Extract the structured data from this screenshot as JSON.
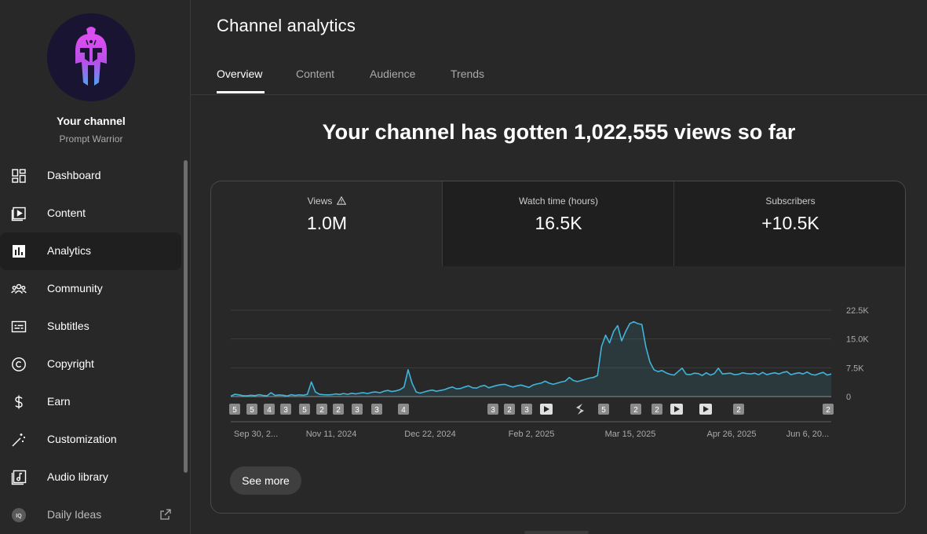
{
  "sidebar": {
    "channel_name": "Your channel",
    "channel_handle": "Prompt Warrior",
    "items": [
      {
        "label": "Dashboard",
        "icon": "dashboard-icon"
      },
      {
        "label": "Content",
        "icon": "content-icon"
      },
      {
        "label": "Analytics",
        "icon": "analytics-icon",
        "active": true
      },
      {
        "label": "Community",
        "icon": "community-icon"
      },
      {
        "label": "Subtitles",
        "icon": "subtitles-icon"
      },
      {
        "label": "Copyright",
        "icon": "copyright-icon"
      },
      {
        "label": "Earn",
        "icon": "earn-icon"
      },
      {
        "label": "Customization",
        "icon": "customization-icon"
      },
      {
        "label": "Audio library",
        "icon": "audio-library-icon"
      },
      {
        "label": "Daily Ideas",
        "icon": "daily-ideas-icon",
        "external": true
      }
    ]
  },
  "header": {
    "title": "Channel analytics"
  },
  "tabs": [
    {
      "label": "Overview",
      "active": true
    },
    {
      "label": "Content"
    },
    {
      "label": "Audience"
    },
    {
      "label": "Trends"
    }
  ],
  "headline": "Your channel has gotten 1,022,555 views so far",
  "metrics": [
    {
      "label": "Views",
      "value": "1.0M",
      "active": true,
      "warning": true
    },
    {
      "label": "Watch time (hours)",
      "value": "16.5K"
    },
    {
      "label": "Subscribers",
      "value": "+10.5K"
    }
  ],
  "see_more_label": "See more",
  "colors": {
    "accent": "#41b4d9",
    "background": "#282828",
    "card_tab_bg": "#1f1f1f"
  },
  "chart_data": {
    "type": "line",
    "series": [
      {
        "x_range": [
          "Sep 30, 2024",
          "Jun 15, 2025"
        ],
        "values": [
          100,
          600,
          450,
          250,
          180,
          350,
          250,
          500,
          300,
          200,
          1000,
          300,
          420,
          350,
          150,
          500,
          300,
          450,
          350,
          600,
          3800,
          1200,
          600,
          500,
          450,
          500,
          700,
          550,
          800,
          600,
          850,
          700,
          900,
          1000,
          800,
          1100,
          1200,
          1000,
          1400,
          1600,
          1300,
          1500,
          1800,
          2500,
          7000,
          3500,
          1200,
          900,
          1200,
          1500,
          1700,
          1400,
          1600,
          1800,
          2200,
          2500,
          2000,
          2100,
          2500,
          2800,
          2300,
          2200,
          2700,
          2900,
          2300,
          2600,
          2900,
          3100,
          3200,
          2800,
          2500,
          2800,
          3000,
          2700,
          2400,
          3000,
          3300,
          3500,
          4000,
          3500,
          3200,
          3500,
          3800,
          4000,
          5000,
          4200,
          3900,
          4200,
          4500,
          4800,
          5000,
          5500,
          13000,
          16000,
          14000,
          17000,
          18500,
          14500,
          17000,
          19000,
          19500,
          19000,
          18800,
          13000,
          9000,
          7000,
          6500,
          6800,
          6200,
          5800,
          5600,
          6500,
          7400,
          5800,
          5700,
          6100,
          6000,
          5500,
          6200,
          5600,
          6000,
          7400,
          5900,
          6000,
          6100,
          5700,
          5800,
          6200,
          6000,
          5900,
          6100,
          5700,
          6300,
          5700,
          6000,
          6200,
          5900,
          6300,
          6500,
          5700,
          6000,
          6200,
          5900,
          6400,
          5800,
          5600,
          6000,
          6300,
          5600,
          5900
        ]
      }
    ],
    "x_tick_labels": [
      "Sep 30, 2...",
      "Nov 11, 2024",
      "Dec 22, 2024",
      "Feb 2, 2025",
      "Mar 15, 2025",
      "Apr 26, 2025",
      "Jun 6, 20..."
    ],
    "y_tick_labels": [
      "22.5K",
      "15.0K",
      "7.5K",
      "0"
    ],
    "ylim": [
      0,
      22500
    ],
    "markers": [
      {
        "label": "5",
        "kind": "count"
      },
      {
        "label": "5",
        "kind": "count"
      },
      {
        "label": "4",
        "kind": "count"
      },
      {
        "label": "3",
        "kind": "count"
      },
      {
        "label": "5",
        "kind": "count"
      },
      {
        "label": "2",
        "kind": "count"
      },
      {
        "label": "2",
        "kind": "count"
      },
      {
        "label": "3",
        "kind": "count"
      },
      {
        "label": "3",
        "kind": "count"
      },
      {
        "label": "4",
        "kind": "count"
      },
      {
        "label": "3",
        "kind": "count"
      },
      {
        "label": "2",
        "kind": "count"
      },
      {
        "label": "3",
        "kind": "count"
      },
      {
        "label": "",
        "kind": "video"
      },
      {
        "label": "",
        "kind": "short"
      },
      {
        "label": "5",
        "kind": "count"
      },
      {
        "label": "2",
        "kind": "count"
      },
      {
        "label": "2",
        "kind": "count"
      },
      {
        "label": "",
        "kind": "video"
      },
      {
        "label": "",
        "kind": "video"
      },
      {
        "label": "2",
        "kind": "count"
      },
      {
        "label": "2",
        "kind": "count"
      }
    ],
    "grid": true
  }
}
